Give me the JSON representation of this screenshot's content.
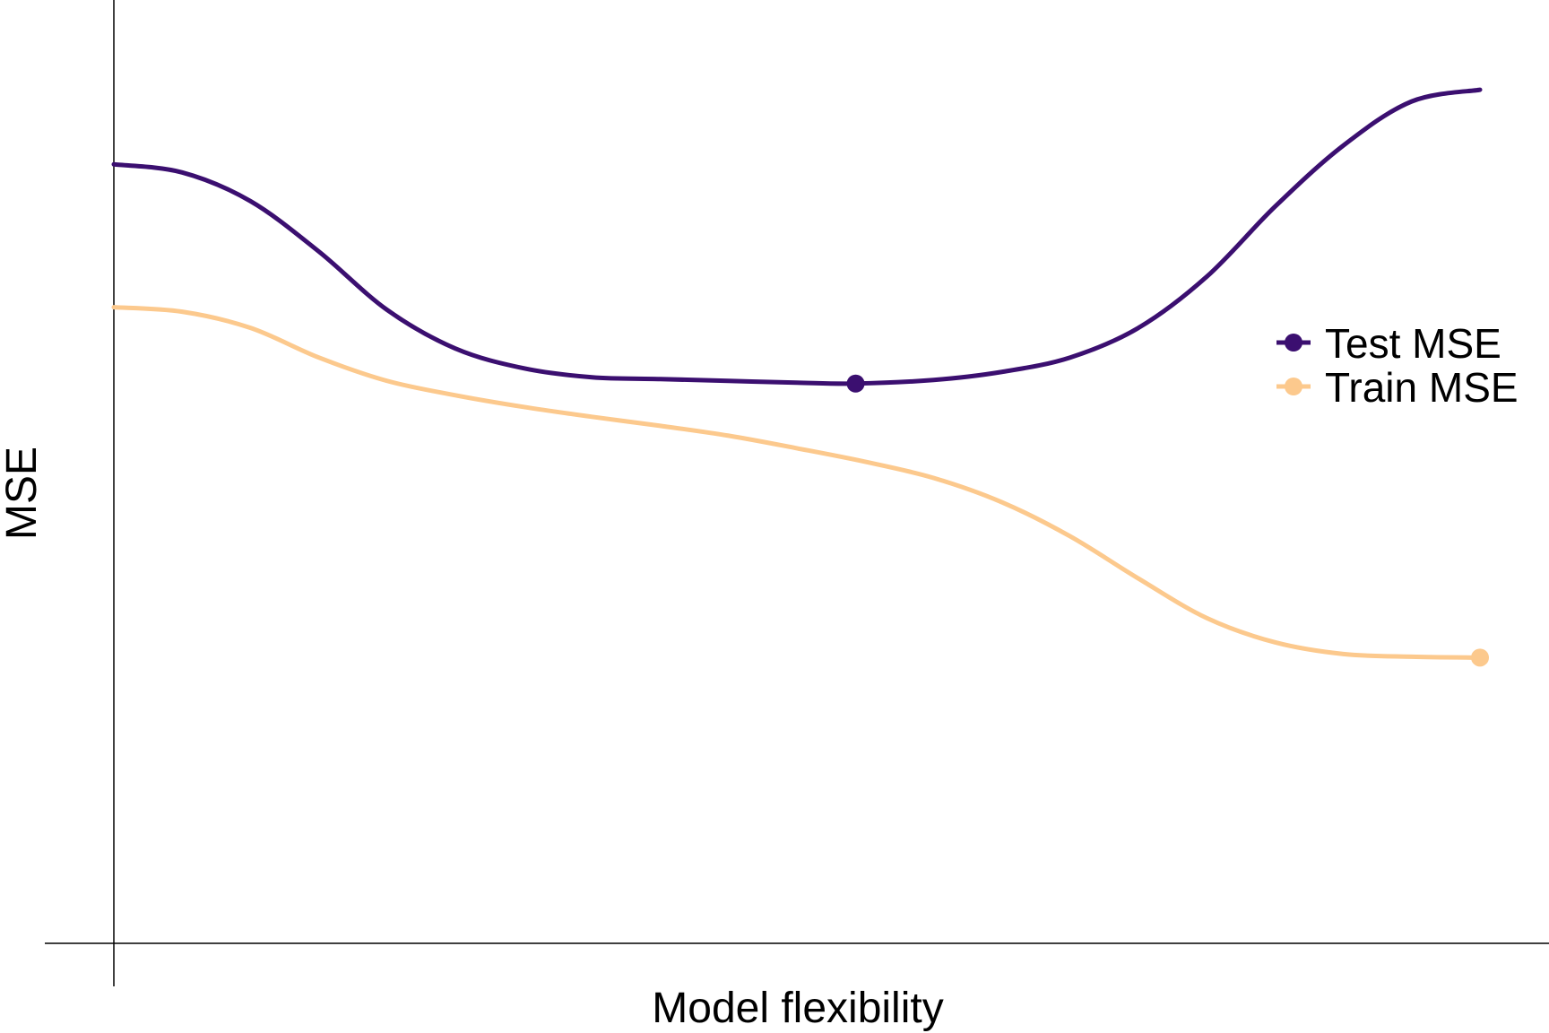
{
  "chart_data": {
    "type": "line",
    "title": "",
    "xlabel": "Model flexibility",
    "ylabel": "MSE",
    "xlim": [
      0,
      100
    ],
    "ylim": [
      0,
      100
    ],
    "grid": false,
    "legend_position": "right",
    "series": [
      {
        "name": "Test MSE",
        "color": "#3B0F70",
        "marker_at_x": 54.3,
        "x": [
          0,
          5,
          10,
          15,
          20,
          25,
          30,
          35,
          40,
          45,
          50,
          54.3,
          60,
          65,
          70,
          75,
          80,
          85,
          90,
          95,
          100
        ],
        "y": [
          86.7,
          85.8,
          82.6,
          77.0,
          70.5,
          66.2,
          64.0,
          63.0,
          62.8,
          62.6,
          62.4,
          62.3,
          62.7,
          63.6,
          65.2,
          68.5,
          74.2,
          82.0,
          88.8,
          93.7,
          95.0
        ]
      },
      {
        "name": "Train MSE",
        "color": "#FCC98D",
        "marker_at_x": 100,
        "x": [
          0,
          5,
          10,
          15,
          20,
          25,
          30,
          35,
          40,
          45,
          50,
          55,
          60,
          65,
          70,
          75,
          80,
          85,
          90,
          95,
          100
        ],
        "y": [
          70.8,
          70.3,
          68.5,
          65.2,
          62.6,
          61.0,
          59.7,
          58.6,
          57.6,
          56.5,
          55.1,
          53.6,
          51.8,
          49.1,
          45.3,
          40.6,
          36.2,
          33.5,
          32.2,
          31.9,
          31.8
        ]
      }
    ]
  }
}
